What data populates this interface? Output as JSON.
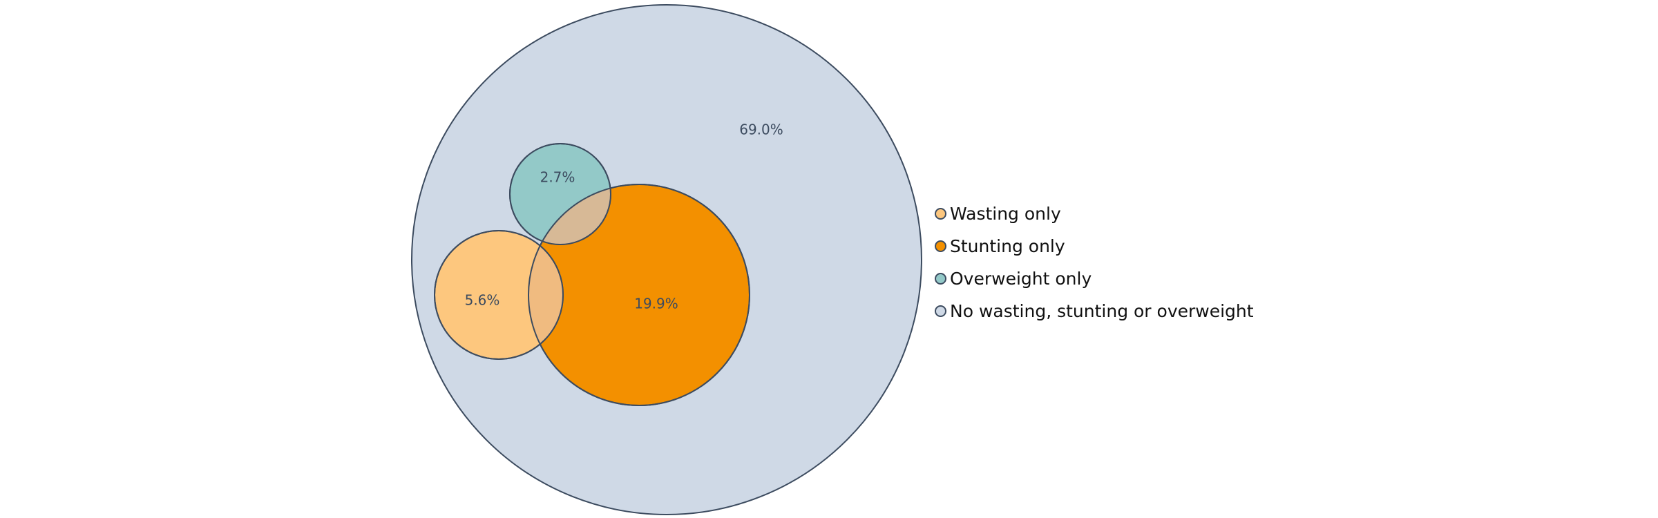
{
  "chart_data": {
    "type": "venn",
    "sets": [
      {
        "key": "wasting",
        "name": "Wasting only",
        "value_label": "5.6%",
        "value": 5.6,
        "color": "#fdc77e"
      },
      {
        "key": "stunting",
        "name": "Stunting only",
        "value_label": "19.9%",
        "value": 19.9,
        "color": "#f39000"
      },
      {
        "key": "overweight",
        "name": "Overweight only",
        "value_label": "2.7%",
        "value": 2.7,
        "color": "#93c9c8"
      },
      {
        "key": "none",
        "name": "No wasting, stunting or overweight",
        "value_label": "69.0%",
        "value": 69.0,
        "color": "#cfd9e6"
      }
    ],
    "overlaps": [
      {
        "sets": [
          "wasting",
          "stunting"
        ],
        "color": "#f0bb80"
      },
      {
        "sets": [
          "overweight",
          "stunting"
        ],
        "color": "#d7b996"
      }
    ],
    "outline_color": "#3c4b5f",
    "legend_position": "right"
  }
}
